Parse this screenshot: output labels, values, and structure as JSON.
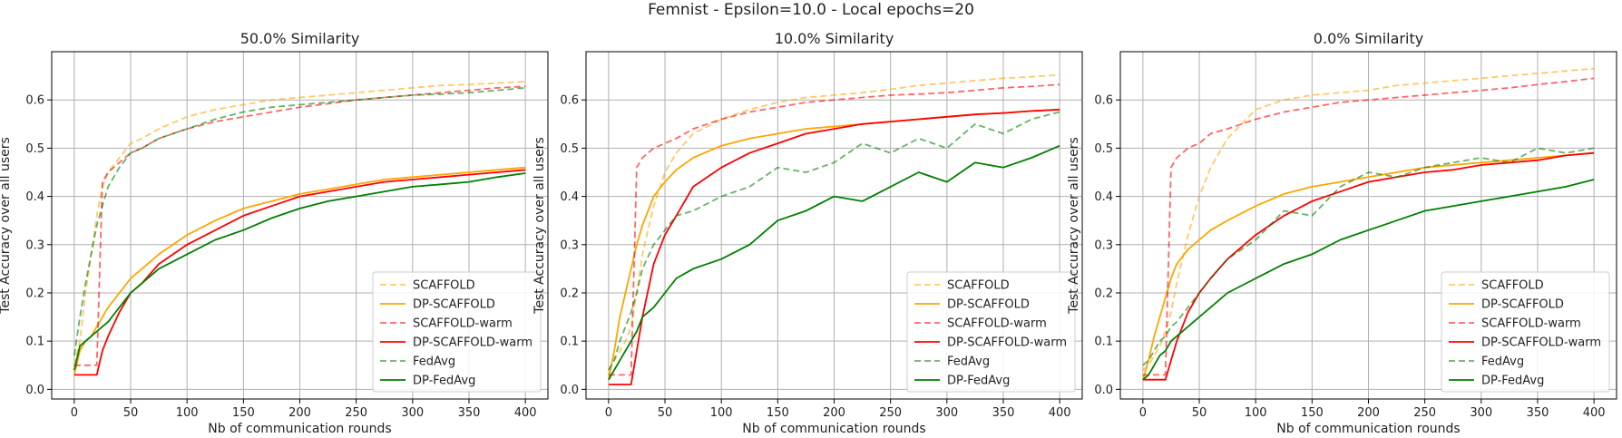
{
  "figure": {
    "suptitle": "Femnist - Epsilon=10.0 - Local epochs=20"
  },
  "styles": [
    {
      "name": "SCAFFOLD",
      "color": "#ffa500",
      "dash": "dashed",
      "opacity": 0.6
    },
    {
      "name": "DP-SCAFFOLD",
      "color": "#ffa500",
      "dash": "solid",
      "opacity": 1.0
    },
    {
      "name": "SCAFFOLD-warm",
      "color": "#ff0000",
      "dash": "dashed",
      "opacity": 0.6
    },
    {
      "name": "DP-SCAFFOLD-warm",
      "color": "#ff0000",
      "dash": "solid",
      "opacity": 1.0
    },
    {
      "name": "FedAvg",
      "color": "#008000",
      "dash": "dashed",
      "opacity": 0.6
    },
    {
      "name": "DP-FedAvg",
      "color": "#008000",
      "dash": "solid",
      "opacity": 1.0
    }
  ],
  "chart_data": [
    {
      "type": "line",
      "title": "50.0% Similarity",
      "xlabel": "Nb of communication rounds",
      "ylabel": "Test Accuracy over all users",
      "xlim": [
        -20,
        420
      ],
      "ylim": [
        -0.02,
        0.7
      ],
      "xticks": [
        0,
        50,
        100,
        150,
        200,
        250,
        300,
        350,
        400
      ],
      "yticks": [
        0.0,
        0.1,
        0.2,
        0.3,
        0.4,
        0.5,
        0.6
      ],
      "grid": true,
      "legend": "lower-right",
      "x": [
        0,
        5,
        10,
        15,
        20,
        25,
        30,
        40,
        50,
        60,
        75,
        100,
        125,
        150,
        175,
        200,
        225,
        250,
        275,
        300,
        325,
        350,
        375,
        400
      ],
      "series": [
        {
          "name": "SCAFFOLD",
          "values": [
            0.05,
            0.1,
            0.2,
            0.28,
            0.36,
            0.42,
            0.45,
            0.48,
            0.51,
            0.52,
            0.54,
            0.565,
            0.58,
            0.59,
            0.6,
            0.605,
            0.61,
            0.615,
            0.62,
            0.625,
            0.63,
            0.632,
            0.635,
            0.638
          ]
        },
        {
          "name": "DP-SCAFFOLD",
          "values": [
            0.03,
            0.08,
            0.1,
            0.11,
            0.13,
            0.15,
            0.17,
            0.2,
            0.23,
            0.25,
            0.28,
            0.32,
            0.35,
            0.375,
            0.39,
            0.405,
            0.415,
            0.425,
            0.435,
            0.44,
            0.445,
            0.45,
            0.455,
            0.46
          ]
        },
        {
          "name": "SCAFFOLD-warm",
          "values": [
            0.05,
            0.05,
            0.05,
            0.05,
            0.05,
            0.43,
            0.45,
            0.47,
            0.49,
            0.5,
            0.52,
            0.54,
            0.555,
            0.565,
            0.575,
            0.585,
            0.592,
            0.6,
            0.605,
            0.61,
            0.615,
            0.62,
            0.625,
            0.628
          ]
        },
        {
          "name": "DP-SCAFFOLD-warm",
          "values": [
            0.03,
            0.03,
            0.03,
            0.03,
            0.03,
            0.08,
            0.11,
            0.16,
            0.2,
            0.22,
            0.26,
            0.3,
            0.33,
            0.36,
            0.38,
            0.4,
            0.41,
            0.42,
            0.43,
            0.435,
            0.44,
            0.445,
            0.45,
            0.455
          ]
        },
        {
          "name": "FedAvg",
          "values": [
            0.07,
            0.15,
            0.22,
            0.28,
            0.34,
            0.38,
            0.42,
            0.46,
            0.49,
            0.5,
            0.52,
            0.54,
            0.56,
            0.575,
            0.585,
            0.59,
            0.595,
            0.6,
            0.605,
            0.61,
            0.612,
            0.615,
            0.62,
            0.625
          ]
        },
        {
          "name": "DP-FedAvg",
          "values": [
            0.04,
            0.09,
            0.1,
            0.11,
            0.12,
            0.13,
            0.14,
            0.17,
            0.2,
            0.22,
            0.25,
            0.28,
            0.31,
            0.33,
            0.355,
            0.375,
            0.39,
            0.4,
            0.41,
            0.42,
            0.425,
            0.43,
            0.44,
            0.448
          ]
        }
      ]
    },
    {
      "type": "line",
      "title": "10.0% Similarity",
      "xlabel": "Nb of communication rounds",
      "ylabel": "Test Accuracy over all users",
      "xlim": [
        -20,
        420
      ],
      "ylim": [
        -0.02,
        0.7
      ],
      "xticks": [
        0,
        50,
        100,
        150,
        200,
        250,
        300,
        350,
        400
      ],
      "yticks": [
        0.0,
        0.1,
        0.2,
        0.3,
        0.4,
        0.5,
        0.6
      ],
      "grid": true,
      "legend": "lower-right",
      "x": [
        0,
        5,
        10,
        15,
        20,
        25,
        30,
        40,
        50,
        60,
        75,
        100,
        125,
        150,
        175,
        200,
        225,
        250,
        275,
        300,
        325,
        350,
        375,
        400
      ],
      "series": [
        {
          "name": "SCAFFOLD",
          "values": [
            0.04,
            0.06,
            0.08,
            0.1,
            0.13,
            0.2,
            0.28,
            0.38,
            0.45,
            0.49,
            0.53,
            0.56,
            0.58,
            0.595,
            0.605,
            0.61,
            0.615,
            0.622,
            0.63,
            0.635,
            0.64,
            0.645,
            0.648,
            0.652
          ]
        },
        {
          "name": "DP-SCAFFOLD",
          "values": [
            0.02,
            0.08,
            0.15,
            0.2,
            0.25,
            0.3,
            0.34,
            0.4,
            0.43,
            0.455,
            0.48,
            0.505,
            0.52,
            0.53,
            0.54,
            0.545,
            0.55,
            0.555,
            0.56,
            0.565,
            0.57,
            0.573,
            0.577,
            0.58
          ]
        },
        {
          "name": "SCAFFOLD-warm",
          "values": [
            0.03,
            0.03,
            0.03,
            0.03,
            0.03,
            0.46,
            0.48,
            0.5,
            0.51,
            0.52,
            0.54,
            0.56,
            0.575,
            0.585,
            0.595,
            0.6,
            0.605,
            0.61,
            0.612,
            0.615,
            0.62,
            0.625,
            0.628,
            0.632
          ]
        },
        {
          "name": "DP-SCAFFOLD-warm",
          "values": [
            0.01,
            0.01,
            0.01,
            0.01,
            0.01,
            0.08,
            0.15,
            0.26,
            0.32,
            0.36,
            0.42,
            0.46,
            0.49,
            0.51,
            0.53,
            0.54,
            0.55,
            0.555,
            0.56,
            0.565,
            0.57,
            0.573,
            0.577,
            0.58
          ]
        },
        {
          "name": "FedAvg",
          "values": [
            0.04,
            0.06,
            0.1,
            0.13,
            0.16,
            0.2,
            0.25,
            0.3,
            0.33,
            0.36,
            0.37,
            0.4,
            0.42,
            0.46,
            0.45,
            0.47,
            0.51,
            0.49,
            0.52,
            0.5,
            0.55,
            0.53,
            0.56,
            0.575
          ]
        },
        {
          "name": "DP-FedAvg",
          "values": [
            0.02,
            0.04,
            0.06,
            0.08,
            0.1,
            0.12,
            0.15,
            0.17,
            0.2,
            0.23,
            0.25,
            0.27,
            0.3,
            0.35,
            0.37,
            0.4,
            0.39,
            0.42,
            0.45,
            0.43,
            0.47,
            0.46,
            0.48,
            0.505
          ]
        }
      ]
    },
    {
      "type": "line",
      "title": "0.0% Similarity",
      "xlabel": "Nb of communication rounds",
      "ylabel": "Test Accuracy over all users",
      "xlim": [
        -20,
        420
      ],
      "ylim": [
        -0.02,
        0.7
      ],
      "xticks": [
        0,
        50,
        100,
        150,
        200,
        250,
        300,
        350,
        400
      ],
      "yticks": [
        0.0,
        0.1,
        0.2,
        0.3,
        0.4,
        0.5,
        0.6
      ],
      "grid": true,
      "legend": "lower-right",
      "x": [
        0,
        5,
        10,
        15,
        20,
        25,
        30,
        40,
        50,
        60,
        75,
        100,
        125,
        150,
        175,
        200,
        225,
        250,
        275,
        300,
        325,
        350,
        375,
        400
      ],
      "series": [
        {
          "name": "SCAFFOLD",
          "values": [
            0.04,
            0.05,
            0.07,
            0.09,
            0.12,
            0.16,
            0.22,
            0.32,
            0.4,
            0.46,
            0.52,
            0.58,
            0.6,
            0.61,
            0.615,
            0.62,
            0.63,
            0.635,
            0.64,
            0.645,
            0.65,
            0.655,
            0.66,
            0.665
          ]
        },
        {
          "name": "DP-SCAFFOLD",
          "values": [
            0.02,
            0.06,
            0.11,
            0.15,
            0.19,
            0.23,
            0.26,
            0.29,
            0.31,
            0.33,
            0.35,
            0.38,
            0.405,
            0.42,
            0.43,
            0.44,
            0.45,
            0.46,
            0.465,
            0.47,
            0.475,
            0.48,
            0.485,
            0.49
          ]
        },
        {
          "name": "SCAFFOLD-warm",
          "values": [
            0.03,
            0.03,
            0.03,
            0.03,
            0.03,
            0.46,
            0.48,
            0.5,
            0.51,
            0.53,
            0.54,
            0.56,
            0.575,
            0.585,
            0.595,
            0.6,
            0.605,
            0.61,
            0.615,
            0.62,
            0.625,
            0.632,
            0.638,
            0.645
          ]
        },
        {
          "name": "DP-SCAFFOLD-warm",
          "values": [
            0.02,
            0.02,
            0.02,
            0.02,
            0.02,
            0.06,
            0.1,
            0.16,
            0.2,
            0.23,
            0.27,
            0.32,
            0.36,
            0.39,
            0.41,
            0.43,
            0.44,
            0.45,
            0.455,
            0.465,
            0.47,
            0.475,
            0.485,
            0.49
          ]
        },
        {
          "name": "FedAvg",
          "values": [
            0.05,
            0.06,
            0.08,
            0.1,
            0.11,
            0.13,
            0.14,
            0.17,
            0.2,
            0.23,
            0.27,
            0.31,
            0.37,
            0.36,
            0.42,
            0.45,
            0.44,
            0.46,
            0.47,
            0.48,
            0.47,
            0.5,
            0.49,
            0.5
          ]
        },
        {
          "name": "DP-FedAvg",
          "values": [
            0.02,
            0.03,
            0.05,
            0.07,
            0.08,
            0.1,
            0.11,
            0.13,
            0.15,
            0.17,
            0.2,
            0.23,
            0.26,
            0.28,
            0.31,
            0.33,
            0.35,
            0.37,
            0.38,
            0.39,
            0.4,
            0.41,
            0.42,
            0.435
          ]
        }
      ]
    }
  ]
}
